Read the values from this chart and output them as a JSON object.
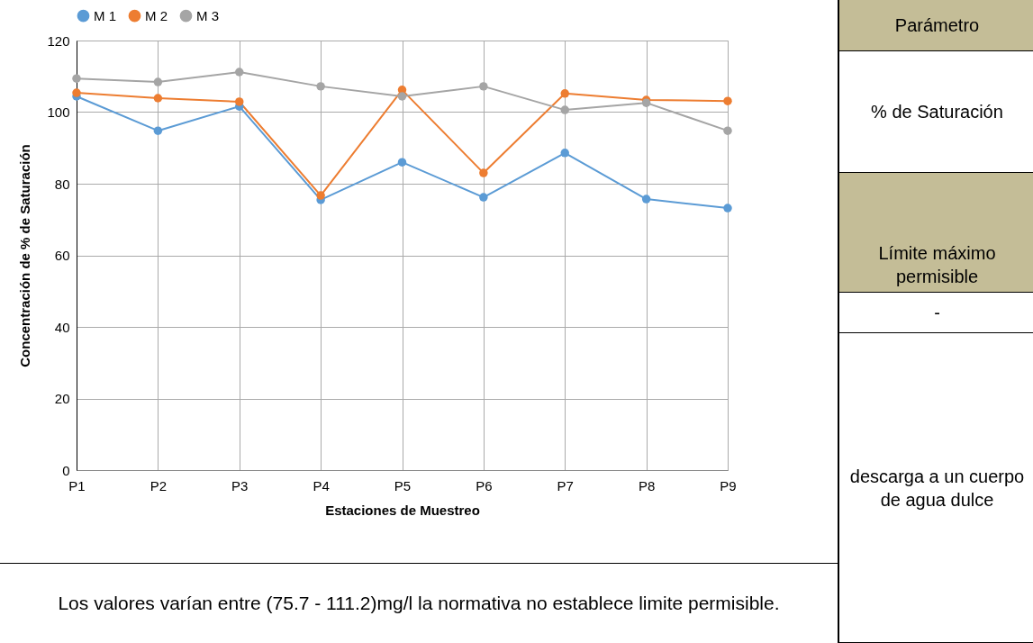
{
  "chart_data": {
    "type": "line",
    "xlabel": "Estaciones de Muestreo",
    "ylabel": "Concentración de  % de Saturación",
    "categories": [
      "P1",
      "P2",
      "P3",
      "P4",
      "P5",
      "P6",
      "P7",
      "P8",
      "P9"
    ],
    "series": [
      {
        "name": "M 1",
        "color": "#5b9bd5",
        "values": [
          104.4,
          94.8,
          101.6,
          75.5,
          86,
          76.2,
          88.6,
          75.7,
          73.2
        ]
      },
      {
        "name": "M 2",
        "color": "#ed7d31",
        "values": [
          105.4,
          103.9,
          102.9,
          76.7,
          106.2,
          83,
          105.2,
          103.4,
          103.1
        ]
      },
      {
        "name": "M 3",
        "color": "#a5a5a5",
        "values": [
          109.4,
          108.4,
          111.2,
          107.2,
          104.4,
          107.2,
          100.6,
          102.6,
          94.8
        ]
      }
    ],
    "ylim": [
      0,
      120
    ],
    "yticks": [
      0,
      20,
      40,
      60,
      80,
      100,
      120
    ],
    "grid": true,
    "legend": "top",
    "marker": "circle",
    "line_style": "solid",
    "annotations": [
      "Los valores varían entre (75.7 - 111.2)mg/l la normativa no establece limite permisible.",
      "Parámetro",
      "% de Saturación",
      "Límite máximo permisible",
      "-",
      "descarga a un cuerpo de agua dulce"
    ]
  }
}
